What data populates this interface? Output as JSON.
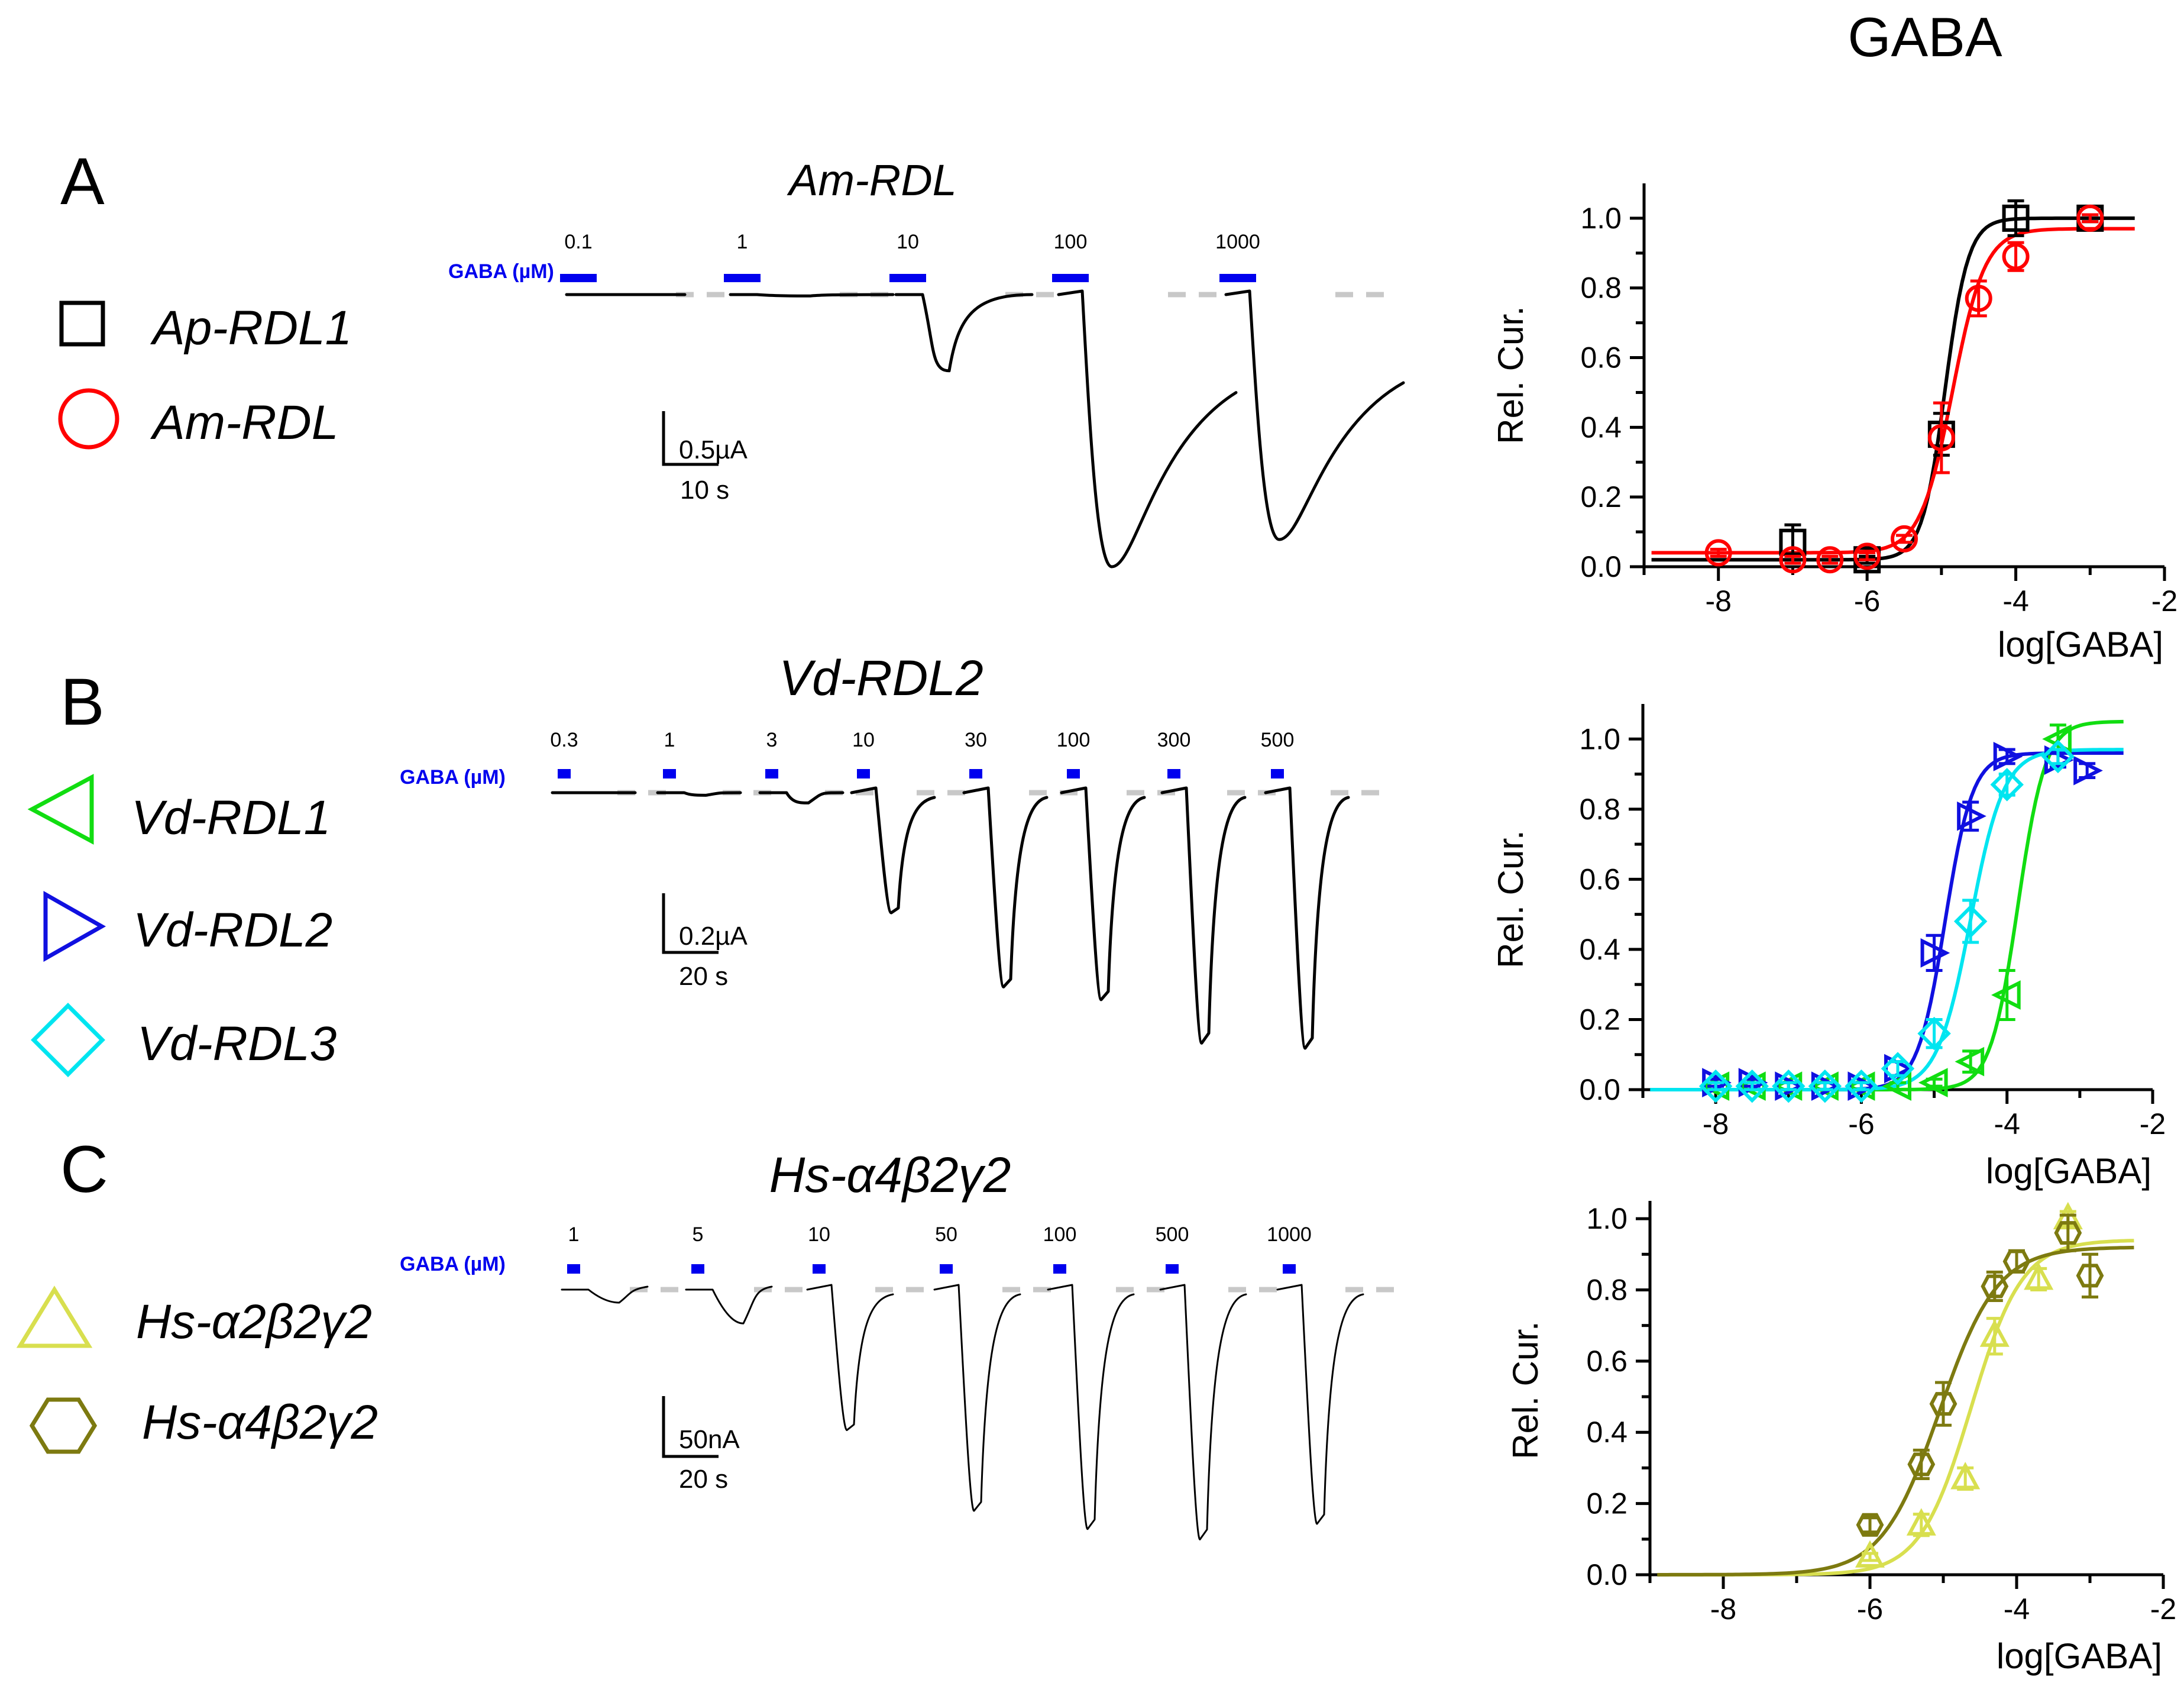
{
  "header": {
    "title": "GABA"
  },
  "colors": {
    "black": "#000000",
    "red": "#ff0000",
    "green": "#11dd11",
    "blue": "#1010e0",
    "cyan": "#00e5f0",
    "yellow": "#d8df4f",
    "olive": "#7d7a10",
    "bar_blue": "#0000ee",
    "baseline": "#c8c8c8"
  },
  "panels": [
    {
      "letter": "A",
      "construct_title": "Am-RDL",
      "gaba_label": "GABA (µM)",
      "concentrations": [
        "0.1",
        "1",
        "10",
        "100",
        "1000"
      ],
      "scale_amp": "0.5µA",
      "scale_time": "10 s",
      "legend": [
        {
          "name": "Ap-RDL1",
          "marker": "square",
          "color": "#000000"
        },
        {
          "name": "Am-RDL",
          "marker": "circle",
          "color": "#ff0000"
        }
      ],
      "trace_rel_amplitudes": [
        0.0,
        0.005,
        0.28,
        1.0,
        0.9
      ],
      "trace_color": "#000000"
    },
    {
      "letter": "B",
      "construct_title": "Vd-RDL2",
      "gaba_label": "GABA (µM)",
      "concentrations": [
        "0.3",
        "1",
        "3",
        "10",
        "30",
        "100",
        "300",
        "500"
      ],
      "scale_amp": "0.2µA",
      "scale_time": "20 s",
      "legend": [
        {
          "name": "Vd-RDL1",
          "marker": "triangle-left",
          "color": "#11dd11"
        },
        {
          "name": "Vd-RDL2",
          "marker": "triangle-right",
          "color": "#1010e0"
        },
        {
          "name": "Vd-RDL3",
          "marker": "diamond",
          "color": "#00e5f0"
        }
      ],
      "trace_rel_amplitudes": [
        0.0,
        0.01,
        0.04,
        0.47,
        0.76,
        0.81,
        0.98,
        1.0
      ],
      "trace_color": "#000000"
    },
    {
      "letter": "C",
      "construct_title": "Hs-α4β2γ2",
      "gaba_label": "GABA (µM)",
      "concentrations": [
        "1",
        "5",
        "10",
        "50",
        "100",
        "500",
        "1000"
      ],
      "scale_amp": "50nA",
      "scale_time": "20 s",
      "legend": [
        {
          "name": "Hs-α2β2γ2",
          "marker": "triangle-up",
          "color": "#d8df4f"
        },
        {
          "name": "Hs-α4β2γ2",
          "marker": "hexagon",
          "color": "#7d7a10"
        }
      ],
      "trace_rel_amplitudes": [
        0.05,
        0.13,
        0.54,
        0.85,
        0.92,
        0.96,
        0.9
      ],
      "trace_color": "#000000"
    }
  ],
  "chart_data": [
    {
      "type": "scatter",
      "title": "",
      "xlabel": "log[GABA]",
      "ylabel": "Rel. Cur.",
      "xlim": [
        -9,
        -2
      ],
      "ylim": [
        0,
        1.1
      ],
      "xticks": [
        -8,
        -6,
        -4,
        -2
      ],
      "xtick_labels": [
        "-8",
        "-6",
        "-4",
        "-2"
      ],
      "yticks": [
        0.0,
        0.2,
        0.4,
        0.6,
        0.8,
        1.0
      ],
      "ytick_labels": [
        "0.0",
        "0.2",
        "0.4",
        "0.6",
        "0.8",
        "1.0"
      ],
      "series": [
        {
          "name": "Ap-RDL1",
          "marker": "square",
          "color": "#000000",
          "x": [
            -7,
            -6,
            -5,
            -4,
            -3
          ],
          "y": [
            0.07,
            0.02,
            0.38,
            1.0,
            1.0
          ],
          "err": [
            0.05,
            0.01,
            0.06,
            0.05,
            0.01
          ],
          "fit": {
            "bottom": 0.02,
            "top": 1.0,
            "logEC50": -4.95,
            "hill": 2.8
          }
        },
        {
          "name": "Am-RDL",
          "marker": "circle",
          "color": "#ff0000",
          "x": [
            -8,
            -7,
            -6.5,
            -6,
            -5.5,
            -5,
            -4.5,
            -4,
            -3
          ],
          "y": [
            0.04,
            0.02,
            0.02,
            0.03,
            0.08,
            0.37,
            0.77,
            0.89,
            1.0
          ],
          "err": [
            0.01,
            0.01,
            0.01,
            0.01,
            0.01,
            0.1,
            0.05,
            0.04,
            0.01
          ],
          "fit": {
            "bottom": 0.04,
            "top": 0.97,
            "logEC50": -4.85,
            "hill": 2.0
          }
        }
      ]
    },
    {
      "type": "scatter",
      "title": "",
      "xlabel": "log[GABA]",
      "ylabel": "Rel. Cur.",
      "xlim": [
        -9,
        -2
      ],
      "ylim": [
        0,
        1.1
      ],
      "xticks": [
        -8,
        -6,
        -4,
        -2
      ],
      "xtick_labels": [
        "-8",
        "-6",
        "-4",
        "-2"
      ],
      "yticks": [
        0.0,
        0.2,
        0.4,
        0.6,
        0.8,
        1.0
      ],
      "ytick_labels": [
        "0.0",
        "0.2",
        "0.4",
        "0.6",
        "0.8",
        "1.0"
      ],
      "series": [
        {
          "name": "Vd-RDL1",
          "marker": "triangle-left",
          "color": "#11dd11",
          "x": [
            -8,
            -7.5,
            -7,
            -6.5,
            -6,
            -5.5,
            -5,
            -4.5,
            -4,
            -3.3
          ],
          "y": [
            0.01,
            0.01,
            0.01,
            0.01,
            0.01,
            0.01,
            0.02,
            0.08,
            0.27,
            1.0
          ],
          "err": [
            0.01,
            0.01,
            0.01,
            0.01,
            0.01,
            0.01,
            0.01,
            0.03,
            0.07,
            0.04
          ],
          "fit": {
            "bottom": 0.0,
            "top": 1.05,
            "logEC50": -3.85,
            "hill": 2.3
          }
        },
        {
          "name": "Vd-RDL2",
          "marker": "triangle-right",
          "color": "#1010e0",
          "x": [
            -8,
            -7.5,
            -7,
            -6.5,
            -6,
            -5.5,
            -5,
            -4.5,
            -4,
            -3.3,
            -2.9
          ],
          "y": [
            0.02,
            0.02,
            0.01,
            0.01,
            0.01,
            0.06,
            0.39,
            0.78,
            0.95,
            0.94,
            0.91
          ],
          "err": [
            0.01,
            0.01,
            0.01,
            0.01,
            0.01,
            0.02,
            0.05,
            0.04,
            0.02,
            0.02,
            0.02
          ],
          "fit": {
            "bottom": 0.0,
            "top": 0.96,
            "logEC50": -4.85,
            "hill": 2.3
          }
        },
        {
          "name": "Vd-RDL3",
          "marker": "diamond",
          "color": "#00e5f0",
          "x": [
            -8,
            -7.5,
            -7,
            -6.5,
            -6,
            -5.5,
            -5,
            -4.5,
            -4,
            -3.3
          ],
          "y": [
            0.01,
            0.01,
            0.01,
            0.01,
            0.01,
            0.06,
            0.16,
            0.48,
            0.87,
            0.95
          ],
          "err": [
            0.01,
            0.01,
            0.01,
            0.01,
            0.01,
            0.02,
            0.04,
            0.06,
            0.03,
            0.02
          ],
          "fit": {
            "bottom": 0.0,
            "top": 0.97,
            "logEC50": -4.5,
            "hill": 1.9
          }
        }
      ]
    },
    {
      "type": "scatter",
      "title": "",
      "xlabel": "log[GABA]",
      "ylabel": "Rel. Cur.",
      "xlim": [
        -9,
        -2
      ],
      "ylim": [
        0,
        1.05
      ],
      "xticks": [
        -8,
        -6,
        -4,
        -2
      ],
      "xtick_labels": [
        "-8",
        "-6",
        "-4",
        "-2"
      ],
      "yticks": [
        0.0,
        0.2,
        0.4,
        0.6,
        0.8,
        1.0
      ],
      "ytick_labels": [
        "0.0",
        "0.2",
        "0.4",
        "0.6",
        "0.8",
        "1.0"
      ],
      "series": [
        {
          "name": "Hs-α2β2γ2",
          "marker": "triangle-up",
          "color": "#d8df4f",
          "x": [
            -6,
            -5.3,
            -4.7,
            -4.3,
            -3.7,
            -3.3
          ],
          "y": [
            0.05,
            0.14,
            0.27,
            0.67,
            0.83,
            1.0
          ],
          "err": [
            0.01,
            0.03,
            0.03,
            0.05,
            0.03,
            0.02
          ],
          "fit": {
            "bottom": 0.0,
            "top": 0.94,
            "logEC50": -4.62,
            "hill": 1.25
          }
        },
        {
          "name": "Hs-α4β2γ2",
          "marker": "hexagon",
          "color": "#7d7a10",
          "x": [
            -6,
            -5.3,
            -5,
            -4.3,
            -4,
            -3.3,
            -3
          ],
          "y": [
            0.14,
            0.31,
            0.48,
            0.81,
            0.88,
            0.96,
            0.84
          ],
          "err": [
            0.02,
            0.04,
            0.06,
            0.04,
            0.03,
            0.05,
            0.06
          ],
          "fit": {
            "bottom": 0.0,
            "top": 0.92,
            "logEC50": -5.05,
            "hill": 1.1
          }
        }
      ]
    }
  ]
}
